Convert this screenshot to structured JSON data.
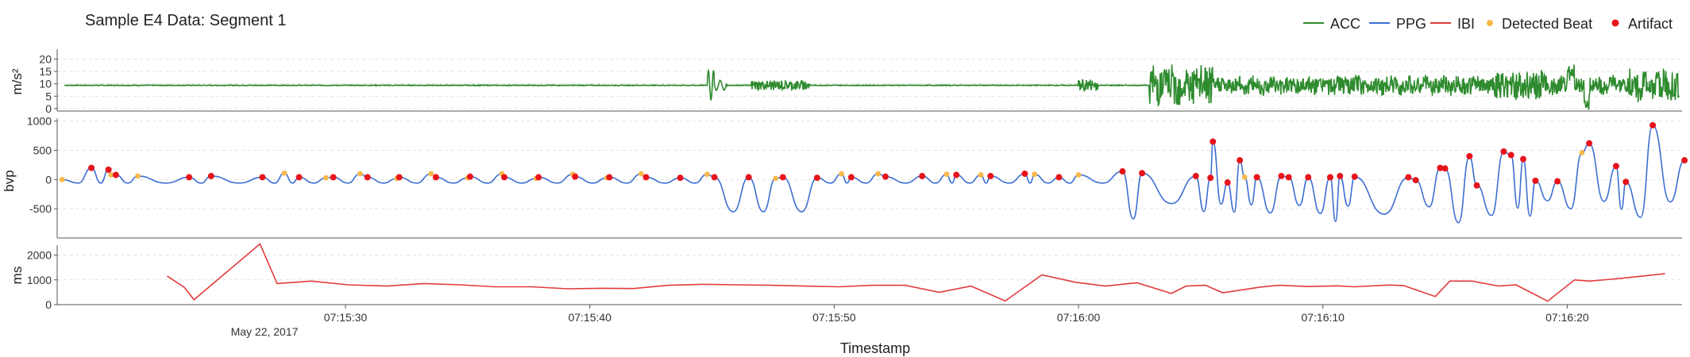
{
  "chart_data": {
    "type": "line",
    "title": "Sample E4 Data: Segment 1",
    "xlabel": "Timestamp",
    "date_label": "May 22, 2017",
    "x_ticks": [
      "07:15:30",
      "07:15:40",
      "07:15:50",
      "07:16:00",
      "07:16:10",
      "07:16:20"
    ],
    "x_tick_seconds": [
      30,
      40,
      50,
      60,
      70,
      80
    ],
    "xlim_seconds": [
      18.2,
      84.7
    ],
    "colors": {
      "acc": "#2e8b2e",
      "ppg": "#3d6fd1",
      "ibi": "#e23b3b",
      "beat": "#f7b84a",
      "artifact": "#e8141c"
    },
    "legend": {
      "position": "top-right",
      "items": [
        {
          "label": "ACC",
          "kind": "line",
          "color": "#2e8b2e"
        },
        {
          "label": "PPG",
          "kind": "line",
          "color": "#3d6fd1"
        },
        {
          "label": "IBI",
          "kind": "line",
          "color": "#e23b3b"
        },
        {
          "label": "Detected Beat",
          "kind": "dot",
          "color": "#f7b84a"
        },
        {
          "label": "Artifact",
          "kind": "dot",
          "color": "#e8141c"
        }
      ]
    },
    "panels": [
      {
        "key": "acc",
        "ylabel": "m/s²",
        "ylim": [
          -1,
          24
        ],
        "yticks": [
          0,
          5,
          10,
          15,
          20
        ]
      },
      {
        "key": "ppg",
        "ylabel": "bvp",
        "ylim": [
          -1000,
          1050
        ],
        "yticks": [
          -500,
          0,
          500,
          1000
        ]
      },
      {
        "key": "ibi",
        "ylabel": "ms",
        "ylim": [
          0,
          2400
        ],
        "yticks": [
          0,
          1000,
          2000
        ]
      }
    ],
    "ibi_series": {
      "name": "IBI",
      "x": [
        22.7,
        23.4,
        23.8,
        26.5,
        27.2,
        28.6,
        30.1,
        31.7,
        33.2,
        34.7,
        36.1,
        37.6,
        39.1,
        40.4,
        41.8,
        43.2,
        44.6,
        46.0,
        47.4,
        48.8,
        50.2,
        51.6,
        52.9,
        54.3,
        55.6,
        57.0,
        58.5,
        59.9,
        61.1,
        62.4,
        63.8,
        64.4,
        65.2,
        65.9,
        67.4,
        68.2,
        69.4,
        70.6,
        71.3,
        72.7,
        73.3,
        74.6,
        75.2,
        76.1,
        77.2,
        77.9,
        79.2,
        80.3,
        80.9,
        82.1,
        84.0
      ],
      "y": [
        1150,
        700,
        200,
        2450,
        850,
        950,
        800,
        750,
        850,
        800,
        720,
        720,
        640,
        660,
        650,
        780,
        820,
        800,
        780,
        750,
        720,
        780,
        780,
        500,
        750,
        150,
        1200,
        900,
        750,
        880,
        450,
        750,
        780,
        480,
        700,
        780,
        730,
        760,
        720,
        790,
        770,
        330,
        950,
        950,
        750,
        800,
        140,
        1000,
        950,
        1050,
        1250
      ]
    },
    "ppg_beats": {
      "name": "Detected Beat",
      "x": [
        18.4,
        20.4,
        21.5,
        26.6,
        27.5,
        29.2,
        30.6,
        32.1,
        33.5,
        35.0,
        36.4,
        37.8,
        39.3,
        40.7,
        42.1,
        44.8,
        47.6,
        50.3,
        51.8,
        54.6,
        56.0,
        58.2,
        60.0,
        66.8,
        80.6
      ],
      "y": [
        0,
        80,
        60,
        40,
        110,
        30,
        100,
        20,
        100,
        30,
        100,
        20,
        90,
        30,
        100,
        90,
        20,
        100,
        100,
        90,
        80,
        90,
        80,
        40,
        460
      ]
    },
    "ppg_artifacts": {
      "name": "Artifact",
      "x": [
        19.6,
        20.3,
        20.6,
        23.6,
        24.5,
        26.6,
        28.1,
        29.5,
        30.9,
        32.2,
        33.7,
        35.1,
        36.5,
        37.9,
        39.4,
        40.8,
        42.3,
        43.7,
        45.1,
        46.5,
        47.9,
        49.3,
        50.7,
        52.1,
        53.6,
        55.0,
        56.4,
        57.8,
        59.2,
        61.8,
        62.6,
        64.8,
        65.4,
        65.5,
        66.1,
        66.6,
        67.3,
        68.3,
        68.6,
        69.4,
        70.3,
        70.7,
        71.3,
        73.5,
        73.8,
        74.8,
        75.0,
        76.0,
        76.3,
        77.4,
        77.7,
        78.2,
        78.7,
        79.6,
        80.9,
        82.0,
        82.4,
        83.5,
        84.8
      ],
      "y": [
        200,
        170,
        80,
        40,
        60,
        40,
        40,
        40,
        40,
        40,
        40,
        50,
        40,
        40,
        50,
        40,
        40,
        30,
        40,
        40,
        40,
        30,
        40,
        50,
        60,
        80,
        60,
        100,
        40,
        140,
        110,
        60,
        30,
        650,
        -50,
        330,
        40,
        60,
        40,
        40,
        40,
        60,
        50,
        40,
        -10,
        200,
        190,
        400,
        -100,
        480,
        420,
        350,
        -20,
        -30,
        620,
        230,
        -40,
        930,
        330
      ]
    }
  }
}
